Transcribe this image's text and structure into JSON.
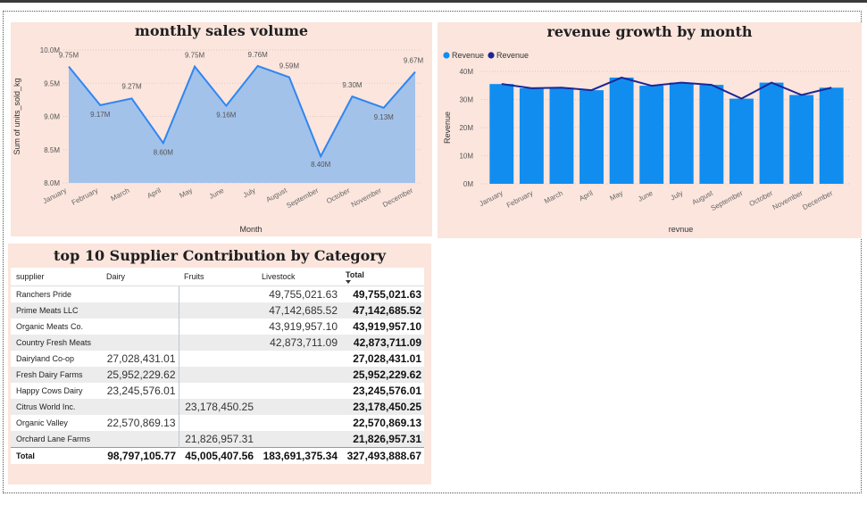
{
  "colors": {
    "panel_bg": "#fbe5dd",
    "area_fill": "#a3c2ea",
    "line": "#2f86f0",
    "bar": "#118df0",
    "rev_line": "#1c2694"
  },
  "charts": {
    "sales": {
      "title": "monthly sales volume",
      "chart_data": {
        "type": "area",
        "title": "monthly sales volume",
        "xlabel": "Month",
        "ylabel": "Sum of units_sold_kg",
        "categories": [
          "January",
          "February",
          "March",
          "April",
          "May",
          "June",
          "July",
          "August",
          "September",
          "October",
          "November",
          "December"
        ],
        "values": [
          9.75,
          9.17,
          9.27,
          8.6,
          9.75,
          9.16,
          9.76,
          9.59,
          8.4,
          9.3,
          9.13,
          9.67
        ],
        "value_labels": [
          "9.75M",
          "9.17M",
          "9.27M",
          "8.60M",
          "9.75M",
          "9.16M",
          "9.76M",
          "9.59M",
          "8.40M",
          "9.30M",
          "9.13M",
          "9.67M"
        ],
        "ylim": [
          8.0,
          10.0
        ],
        "yticks": [
          8.0,
          8.5,
          9.0,
          9.5,
          10.0
        ],
        "ytick_labels": [
          "8.0M",
          "8.5M",
          "9.0M",
          "9.5M",
          "10.0M"
        ],
        "grid": true
      }
    },
    "revenue": {
      "title": "revenue growth by month",
      "chart_data": {
        "type": "bar",
        "title": "revenue growth by month",
        "xlabel": "revnue",
        "ylabel": "Revenue",
        "categories": [
          "January",
          "February",
          "March",
          "April",
          "May",
          "June",
          "July",
          "August",
          "September",
          "October",
          "November",
          "December"
        ],
        "series": [
          {
            "name": "Revenue",
            "kind": "bar",
            "values": [
              35.5,
              34.0,
              34.2,
              33.3,
              37.8,
              34.9,
              36.0,
              35.2,
              30.3,
              36.0,
              31.6,
              34.2
            ]
          },
          {
            "name": "Revenue",
            "kind": "line",
            "values": [
              35.5,
              34.0,
              34.2,
              33.3,
              37.8,
              34.9,
              36.0,
              35.2,
              30.3,
              36.0,
              31.6,
              34.2
            ]
          }
        ],
        "ylim": [
          0,
          42
        ],
        "yticks": [
          0,
          10,
          20,
          30,
          40
        ],
        "ytick_labels": [
          "0M",
          "10M",
          "20M",
          "30M",
          "40M"
        ],
        "legend": "top-left"
      }
    }
  },
  "table": {
    "title": "top 10 Supplier Contribution by Category",
    "headers": {
      "supplier": "supplier",
      "dairy": "Dairy",
      "fruits": "Fruits",
      "livestock": "Livestock",
      "total": "Total"
    },
    "rows": [
      {
        "supplier": "Ranchers Pride",
        "dairy": "",
        "fruits": "",
        "livestock": "49,755,021.63",
        "total": "49,755,021.63"
      },
      {
        "supplier": "Prime Meats LLC",
        "dairy": "",
        "fruits": "",
        "livestock": "47,142,685.52",
        "total": "47,142,685.52"
      },
      {
        "supplier": "Organic Meats Co.",
        "dairy": "",
        "fruits": "",
        "livestock": "43,919,957.10",
        "total": "43,919,957.10"
      },
      {
        "supplier": "Country Fresh Meats",
        "dairy": "",
        "fruits": "",
        "livestock": "42,873,711.09",
        "total": "42,873,711.09"
      },
      {
        "supplier": "Dairyland Co-op",
        "dairy": "27,028,431.01",
        "fruits": "",
        "livestock": "",
        "total": "27,028,431.01"
      },
      {
        "supplier": "Fresh Dairy Farms",
        "dairy": "25,952,229.62",
        "fruits": "",
        "livestock": "",
        "total": "25,952,229.62"
      },
      {
        "supplier": "Happy Cows Dairy",
        "dairy": "23,245,576.01",
        "fruits": "",
        "livestock": "",
        "total": "23,245,576.01"
      },
      {
        "supplier": "Citrus World Inc.",
        "dairy": "",
        "fruits": "23,178,450.25",
        "livestock": "",
        "total": "23,178,450.25"
      },
      {
        "supplier": "Organic Valley",
        "dairy": "22,570,869.13",
        "fruits": "",
        "livestock": "",
        "total": "22,570,869.13"
      },
      {
        "supplier": "Orchard Lane Farms",
        "dairy": "",
        "fruits": "21,826,957.31",
        "livestock": "",
        "total": "21,826,957.31"
      }
    ],
    "total_row": {
      "label": "Total",
      "dairy": "98,797,105.77",
      "fruits": "45,005,407.56",
      "livestock": "183,691,375.34",
      "total": "327,493,888.67"
    }
  },
  "chart_data": [
    {
      "type": "area",
      "title": "monthly sales volume",
      "xlabel": "Month",
      "ylabel": "Sum of units_sold_kg",
      "categories": [
        "January",
        "February",
        "March",
        "April",
        "May",
        "June",
        "July",
        "August",
        "September",
        "October",
        "November",
        "December"
      ],
      "values": [
        9.75,
        9.17,
        9.27,
        8.6,
        9.75,
        9.16,
        9.76,
        9.59,
        8.4,
        9.3,
        9.13,
        9.67
      ],
      "unit": "M",
      "ylim": [
        8.0,
        10.0
      ]
    },
    {
      "type": "bar",
      "title": "revenue growth by month",
      "xlabel": "revnue",
      "ylabel": "Revenue",
      "categories": [
        "January",
        "February",
        "March",
        "April",
        "May",
        "June",
        "July",
        "August",
        "September",
        "October",
        "November",
        "December"
      ],
      "series": [
        {
          "name": "Revenue",
          "values": [
            35.5,
            34.0,
            34.2,
            33.3,
            37.8,
            34.9,
            36.0,
            35.2,
            30.3,
            36.0,
            31.6,
            34.2
          ]
        },
        {
          "name": "Revenue",
          "values": [
            35.5,
            34.0,
            34.2,
            33.3,
            37.8,
            34.9,
            36.0,
            35.2,
            30.3,
            36.0,
            31.6,
            34.2
          ]
        }
      ],
      "unit": "M",
      "ylim": [
        0,
        42
      ]
    },
    {
      "type": "table",
      "title": "top 10 Supplier Contribution by Category",
      "columns": [
        "supplier",
        "Dairy",
        "Fruits",
        "Livestock",
        "Total"
      ]
    }
  ]
}
